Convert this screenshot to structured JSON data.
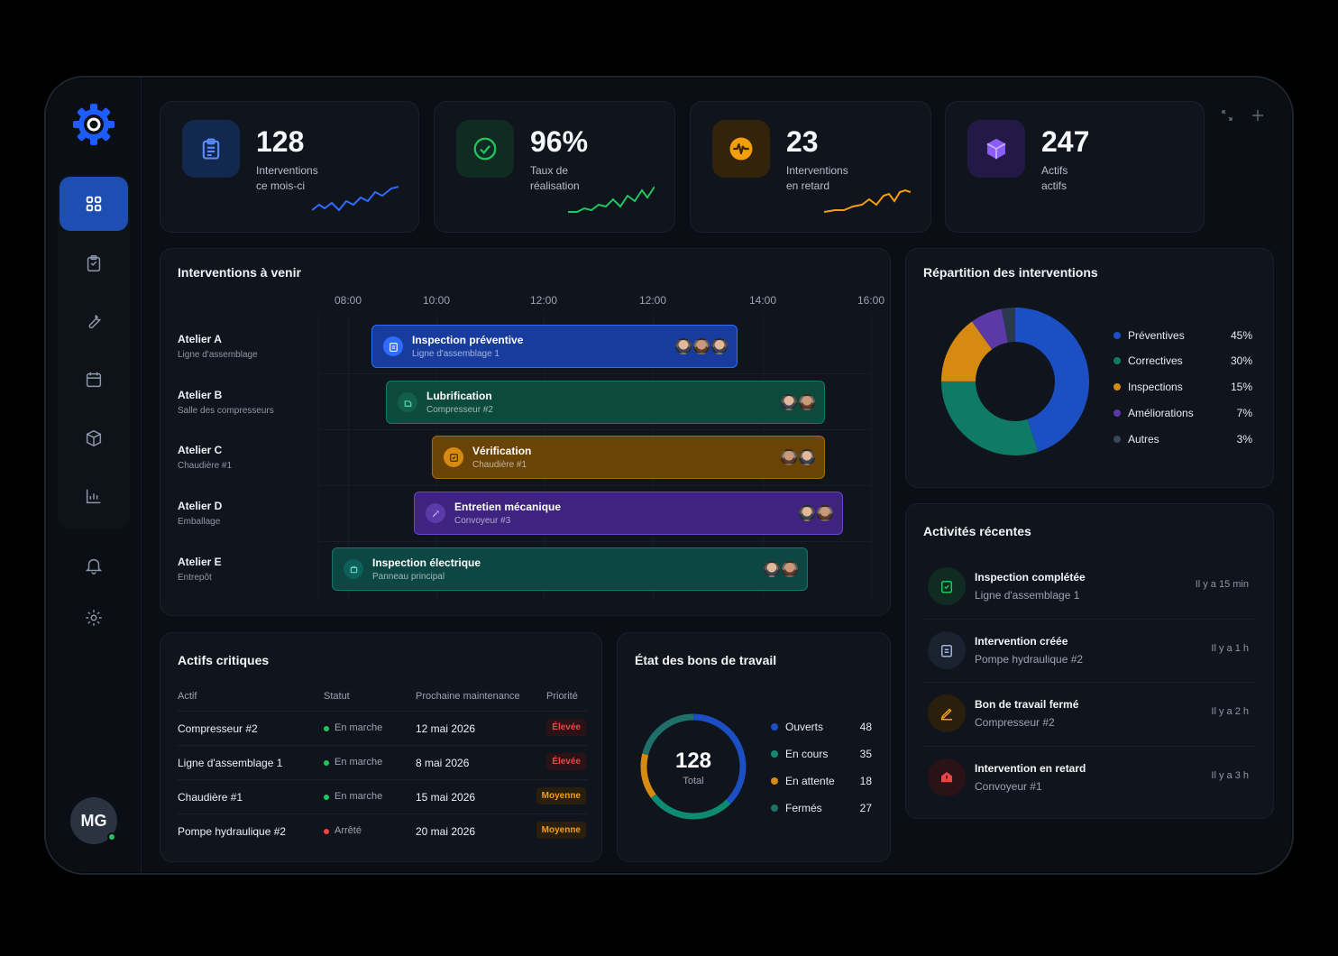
{
  "user": {
    "initials": "MG"
  },
  "kpis": [
    {
      "value": "128",
      "label_line1": "Interventions",
      "label_line2": "ce mois-ci",
      "color": "#2f6bff"
    },
    {
      "value": "96%",
      "label_line1": "Taux de",
      "label_line2": "réalisation",
      "color": "#22c55e"
    },
    {
      "value": "23",
      "label_line1": "Interventions",
      "label_line2": "en retard",
      "color": "#f59e0b"
    },
    {
      "value": "247",
      "label_line1": "Actifs",
      "label_line2": "actifs",
      "color": "#8b5cf6"
    }
  ],
  "schedule": {
    "title": "Interventions à venir",
    "times": [
      "08:00",
      "10:00",
      "12:00",
      "12:00",
      "14:00",
      "16:00"
    ],
    "rows": [
      {
        "name": "Atelier A",
        "sub": "Ligne d'assemblage",
        "task": "Inspection préventive",
        "task_sub": "Ligne d'assemblage 1",
        "color": "#1d4fb3"
      },
      {
        "name": "Atelier B",
        "sub": "Salle des compresseurs",
        "task": "Lubrification",
        "task_sub": "Compresseur #2",
        "color": "#0f5a4a"
      },
      {
        "name": "Atelier C",
        "sub": "Chaudière #1",
        "task": "Vérification",
        "task_sub": "Chaudière #1",
        "color": "#7a4d06"
      },
      {
        "name": "Atelier D",
        "sub": "Emballage",
        "task": "Entretien mécanique",
        "task_sub": "Convoyeur #3",
        "color": "#4a2a8a"
      },
      {
        "name": "Atelier E",
        "sub": "Entrepôt",
        "task": "Inspection électrique",
        "task_sub": "Panneau principal",
        "color": "#0d4f4c"
      }
    ]
  },
  "distribution": {
    "title": "Répartition des interventions",
    "items": [
      {
        "name": "Préventives",
        "pct": "45%",
        "color": "#1d4fc4"
      },
      {
        "name": "Correctives",
        "pct": "30%",
        "color": "#0f7a66"
      },
      {
        "name": "Inspections",
        "pct": "15%",
        "color": "#d68a12"
      },
      {
        "name": "Améliorations",
        "pct": "7%",
        "color": "#5b3aa8"
      },
      {
        "name": "Autres",
        "pct": "3%",
        "color": "#2a3950"
      }
    ]
  },
  "assets": {
    "title": "Actifs critiques",
    "headers": {
      "asset": "Actif",
      "status": "Statut",
      "next": "Prochaine maintenance",
      "priority": "Priorité"
    },
    "rows": [
      {
        "asset": "Compresseur #2",
        "status": "En marche",
        "next": "12 mai 2026",
        "priority": "Élevée"
      },
      {
        "asset": "Ligne d'assemblage 1",
        "status": "En marche",
        "next": "8 mai 2026",
        "priority": "Élevée"
      },
      {
        "asset": "Chaudière #1",
        "status": "En marche",
        "next": "15 mai 2026",
        "priority": "Moyenne"
      },
      {
        "asset": "Pompe hydraulique #2",
        "status": "Arrêté",
        "next": "20 mai 2026",
        "priority": "Moyenne"
      }
    ]
  },
  "workorders": {
    "title": "État des bons de travail",
    "total": "128",
    "total_label": "Total",
    "items": [
      {
        "name": "Ouverts",
        "count": "48",
        "color": "#1d4fc4"
      },
      {
        "name": "En cours",
        "count": "35",
        "color": "#0f8a72"
      },
      {
        "name": "En attente",
        "count": "18",
        "color": "#d68a12"
      },
      {
        "name": "Fermés",
        "count": "27",
        "color": "#1f6f6a"
      }
    ]
  },
  "activities": {
    "title": "Activités récentes",
    "items": [
      {
        "title": "Inspection complétée",
        "sub": "Ligne d'assemblage 1",
        "time": "Il y a 15 min",
        "color": "#22c55e"
      },
      {
        "title": "Intervention créée",
        "sub": "Pompe hydraulique #2",
        "time": "Il y a 1 h",
        "color": "#9fb2d6"
      },
      {
        "title": "Bon de travail fermé",
        "sub": "Compresseur #2",
        "time": "Il y a 2 h",
        "color": "#f59e0b"
      },
      {
        "title": "Intervention en retard",
        "sub": "Convoyeur #1",
        "time": "Il y a 3 h",
        "color": "#ef4444"
      }
    ]
  }
}
